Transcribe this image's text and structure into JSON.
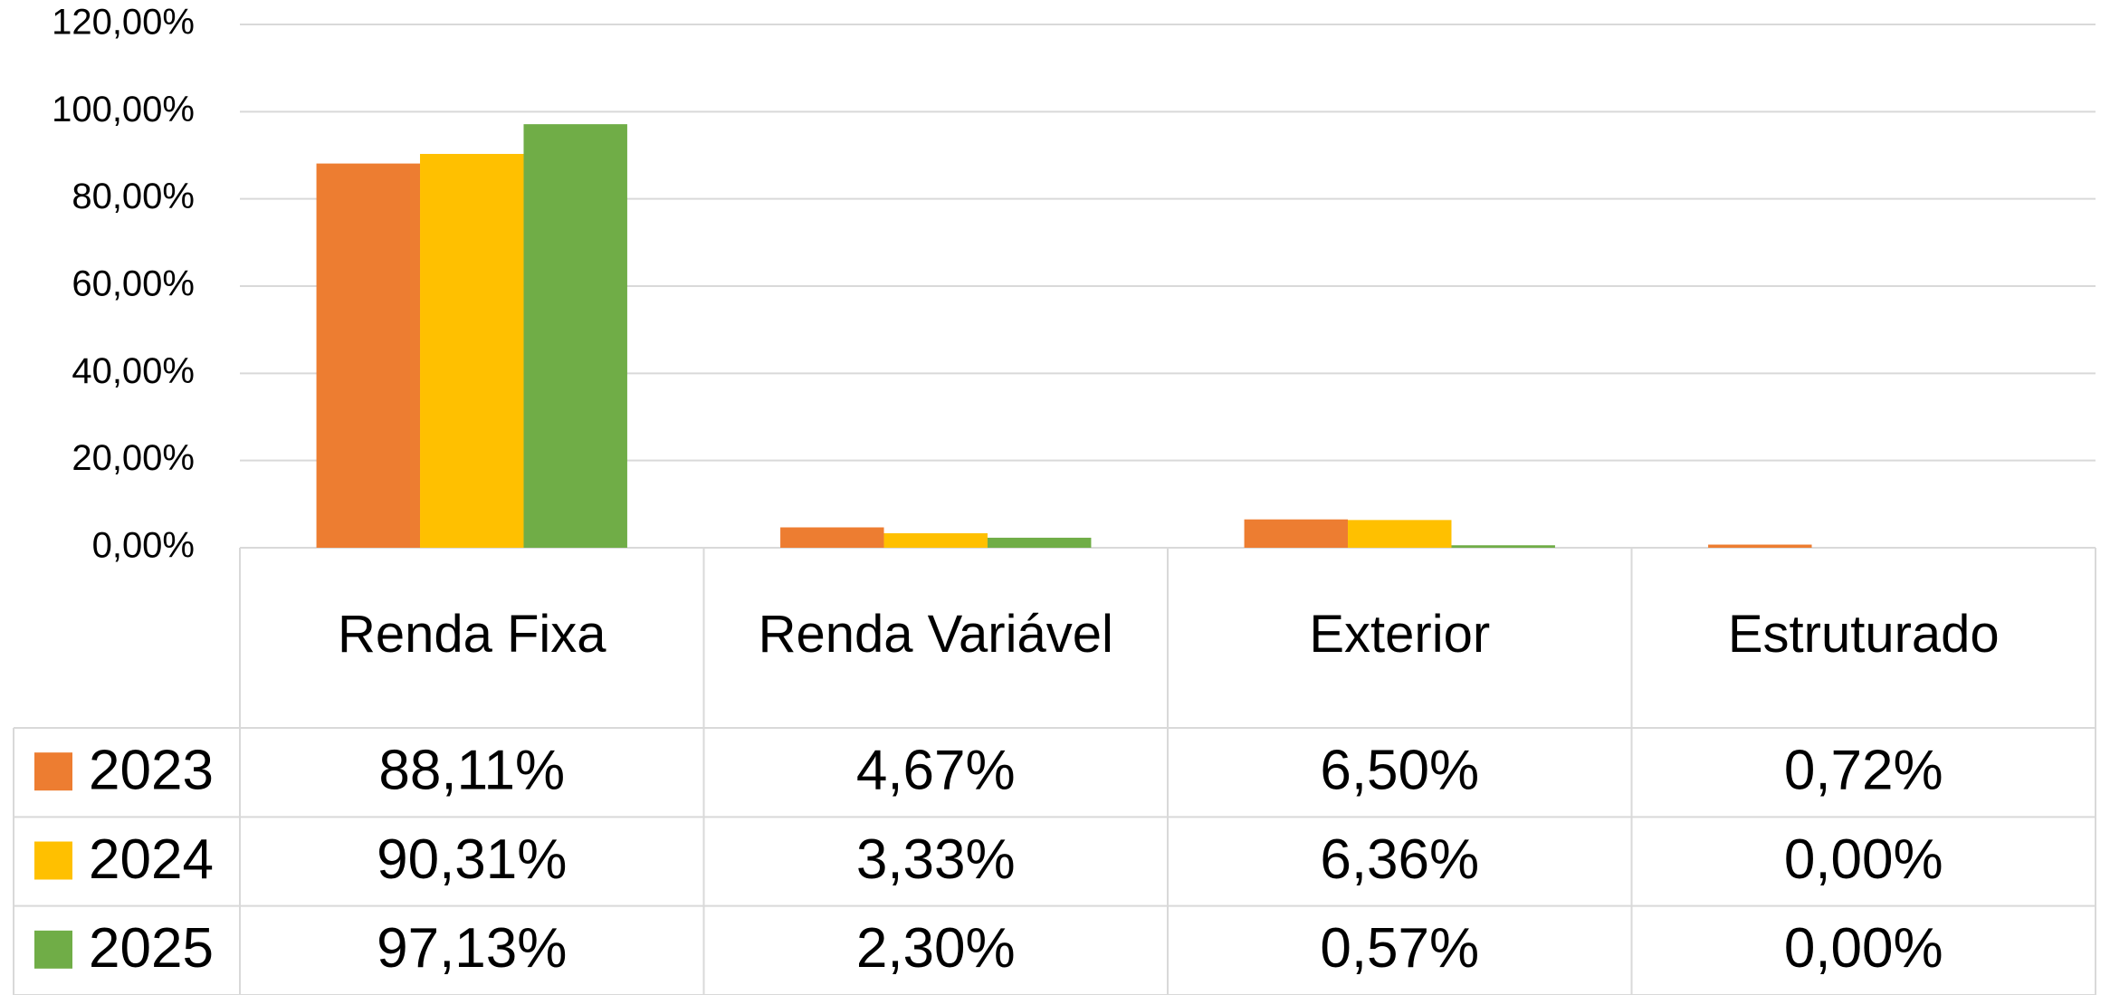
{
  "chart_data": {
    "type": "bar",
    "categories": [
      "Renda Fixa",
      "Renda Variável",
      "Exterior",
      "Estruturado"
    ],
    "series": [
      {
        "name": "2023",
        "color": "#ED7D31",
        "values": [
          88.11,
          4.67,
          6.5,
          0.72
        ],
        "value_labels": [
          "88,11%",
          "4,67%",
          "6,50%",
          "0,72%"
        ]
      },
      {
        "name": "2024",
        "color": "#FFC000",
        "values": [
          90.31,
          3.33,
          6.36,
          0.0
        ],
        "value_labels": [
          "90,31%",
          "3,33%",
          "6,36%",
          "0,00%"
        ]
      },
      {
        "name": "2025",
        "color": "#70AD47",
        "values": [
          97.13,
          2.3,
          0.57,
          0.0
        ],
        "value_labels": [
          "97,13%",
          "2,30%",
          "0,57%",
          "0,00%"
        ]
      }
    ],
    "ylim": [
      0,
      120
    ],
    "yticks": [
      {
        "value": 0,
        "label": "0,00%"
      },
      {
        "value": 20,
        "label": "20,00%"
      },
      {
        "value": 40,
        "label": "40,00%"
      },
      {
        "value": 60,
        "label": "60,00%"
      },
      {
        "value": 80,
        "label": "80,00%"
      },
      {
        "value": 100,
        "label": "100,00%"
      },
      {
        "value": 120,
        "label": "120,00%"
      }
    ],
    "grid": true,
    "data_table": true
  }
}
